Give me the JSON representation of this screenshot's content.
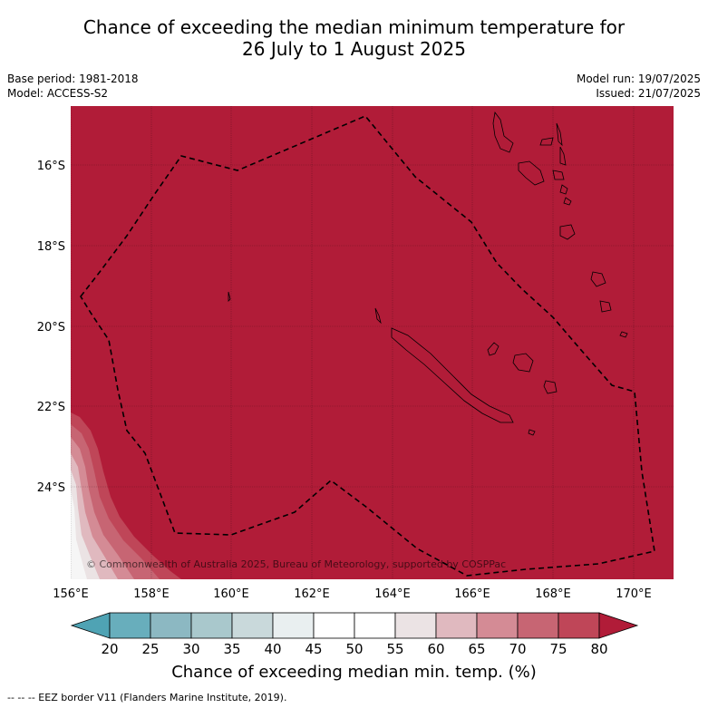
{
  "title": {
    "line1": "Chance of exceeding the median minimum temperature for",
    "line2": "26 July to 1 August 2025"
  },
  "meta": {
    "base_period": "Base period: 1981-2018",
    "model": "Model: ACCESS-S2",
    "model_run": "Model run: 19/07/2025",
    "issued": "Issued: 21/07/2025"
  },
  "map": {
    "background_color": "#b11c38",
    "lon_labels": [
      "156°E",
      "158°E",
      "160°E",
      "162°E",
      "164°E",
      "166°E",
      "168°E",
      "170°E"
    ],
    "lat_labels": [
      "16°S",
      "18°S",
      "20°S",
      "22°S",
      "24°S"
    ],
    "copyright": "© Commonwealth of Australia 2025, Bureau of Meteorology, supported by COSPPac"
  },
  "colorbar": {
    "ticks": [
      "20",
      "25",
      "30",
      "35",
      "40",
      "45",
      "50",
      "55",
      "60",
      "65",
      "70",
      "75",
      "80"
    ],
    "colors": [
      "#4fa3b4",
      "#68aebc",
      "#8cb8c2",
      "#a9c8cc",
      "#c9d9db",
      "#e9eff0",
      "#ffffff",
      "#ffffff",
      "#ebe3e4",
      "#e0b9bf",
      "#d48b95",
      "#c76573",
      "#bf4658",
      "#b11c38"
    ],
    "label": "Chance of exceeding median min. temp. (%)"
  },
  "footnote": "--  --  -- EEZ border V11 (Flanders Marine Institute, 2019)."
}
